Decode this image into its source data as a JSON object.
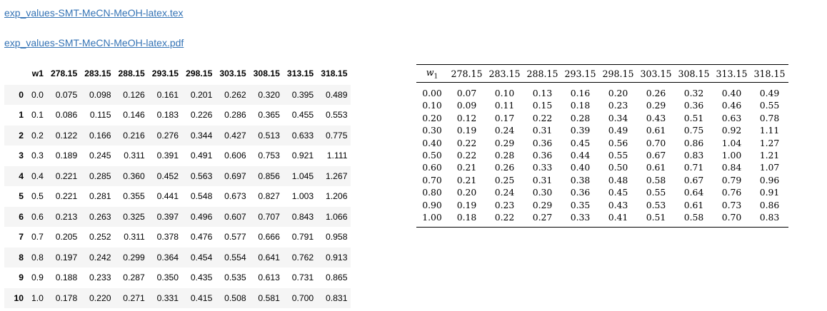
{
  "links": {
    "tex": "exp_values-SMT-MeCN-MeOH-latex.tex",
    "pdf": "exp_values-SMT-MeCN-MeOH-latex.pdf"
  },
  "dataframe": {
    "columns": [
      "w1",
      "278.15",
      "283.15",
      "288.15",
      "293.15",
      "298.15",
      "303.15",
      "308.15",
      "313.15",
      "318.15"
    ],
    "rows": [
      {
        "index": "0",
        "cells": [
          "0.0",
          "0.075",
          "0.098",
          "0.126",
          "0.161",
          "0.201",
          "0.262",
          "0.320",
          "0.395",
          "0.489"
        ]
      },
      {
        "index": "1",
        "cells": [
          "0.1",
          "0.086",
          "0.115",
          "0.146",
          "0.183",
          "0.226",
          "0.286",
          "0.365",
          "0.455",
          "0.553"
        ]
      },
      {
        "index": "2",
        "cells": [
          "0.2",
          "0.122",
          "0.166",
          "0.216",
          "0.276",
          "0.344",
          "0.427",
          "0.513",
          "0.633",
          "0.775"
        ]
      },
      {
        "index": "3",
        "cells": [
          "0.3",
          "0.189",
          "0.245",
          "0.311",
          "0.391",
          "0.491",
          "0.606",
          "0.753",
          "0.921",
          "1.111"
        ]
      },
      {
        "index": "4",
        "cells": [
          "0.4",
          "0.221",
          "0.285",
          "0.360",
          "0.452",
          "0.563",
          "0.697",
          "0.856",
          "1.045",
          "1.267"
        ]
      },
      {
        "index": "5",
        "cells": [
          "0.5",
          "0.221",
          "0.281",
          "0.355",
          "0.441",
          "0.548",
          "0.673",
          "0.827",
          "1.003",
          "1.206"
        ]
      },
      {
        "index": "6",
        "cells": [
          "0.6",
          "0.213",
          "0.263",
          "0.325",
          "0.397",
          "0.496",
          "0.607",
          "0.707",
          "0.843",
          "1.066"
        ]
      },
      {
        "index": "7",
        "cells": [
          "0.7",
          "0.205",
          "0.252",
          "0.311",
          "0.378",
          "0.476",
          "0.577",
          "0.666",
          "0.791",
          "0.958"
        ]
      },
      {
        "index": "8",
        "cells": [
          "0.8",
          "0.197",
          "0.242",
          "0.299",
          "0.364",
          "0.454",
          "0.554",
          "0.641",
          "0.762",
          "0.913"
        ]
      },
      {
        "index": "9",
        "cells": [
          "0.9",
          "0.188",
          "0.233",
          "0.287",
          "0.350",
          "0.435",
          "0.535",
          "0.613",
          "0.731",
          "0.865"
        ]
      },
      {
        "index": "10",
        "cells": [
          "1.0",
          "0.178",
          "0.220",
          "0.271",
          "0.331",
          "0.415",
          "0.508",
          "0.581",
          "0.700",
          "0.831"
        ]
      }
    ]
  },
  "latex_table": {
    "columns": [
      "w1",
      "278.15",
      "283.15",
      "288.15",
      "293.15",
      "298.15",
      "303.15",
      "308.15",
      "313.15",
      "318.15"
    ],
    "rows": [
      [
        "0.00",
        "0.07",
        "0.10",
        "0.13",
        "0.16",
        "0.20",
        "0.26",
        "0.32",
        "0.40",
        "0.49"
      ],
      [
        "0.10",
        "0.09",
        "0.11",
        "0.15",
        "0.18",
        "0.23",
        "0.29",
        "0.36",
        "0.46",
        "0.55"
      ],
      [
        "0.20",
        "0.12",
        "0.17",
        "0.22",
        "0.28",
        "0.34",
        "0.43",
        "0.51",
        "0.63",
        "0.78"
      ],
      [
        "0.30",
        "0.19",
        "0.24",
        "0.31",
        "0.39",
        "0.49",
        "0.61",
        "0.75",
        "0.92",
        "1.11"
      ],
      [
        "0.40",
        "0.22",
        "0.29",
        "0.36",
        "0.45",
        "0.56",
        "0.70",
        "0.86",
        "1.04",
        "1.27"
      ],
      [
        "0.50",
        "0.22",
        "0.28",
        "0.36",
        "0.44",
        "0.55",
        "0.67",
        "0.83",
        "1.00",
        "1.21"
      ],
      [
        "0.60",
        "0.21",
        "0.26",
        "0.33",
        "0.40",
        "0.50",
        "0.61",
        "0.71",
        "0.84",
        "1.07"
      ],
      [
        "0.70",
        "0.21",
        "0.25",
        "0.31",
        "0.38",
        "0.48",
        "0.58",
        "0.67",
        "0.79",
        "0.96"
      ],
      [
        "0.80",
        "0.20",
        "0.24",
        "0.30",
        "0.36",
        "0.45",
        "0.55",
        "0.64",
        "0.76",
        "0.91"
      ],
      [
        "0.90",
        "0.19",
        "0.23",
        "0.29",
        "0.35",
        "0.43",
        "0.53",
        "0.61",
        "0.73",
        "0.86"
      ],
      [
        "1.00",
        "0.18",
        "0.22",
        "0.27",
        "0.33",
        "0.41",
        "0.51",
        "0.58",
        "0.70",
        "0.83"
      ]
    ]
  },
  "colors": {
    "link": "#3473b5",
    "row_stripe": "#f5f5f5"
  }
}
